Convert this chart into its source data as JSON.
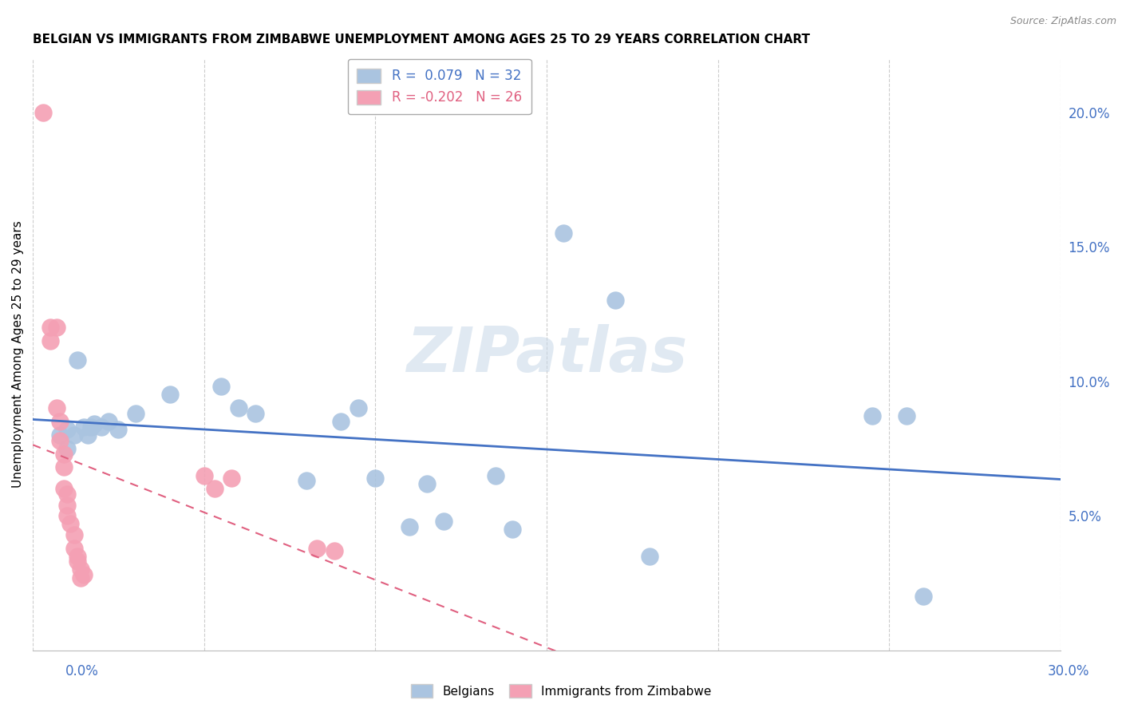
{
  "title": "BELGIAN VS IMMIGRANTS FROM ZIMBABWE UNEMPLOYMENT AMONG AGES 25 TO 29 YEARS CORRELATION CHART",
  "source": "Source: ZipAtlas.com",
  "ylabel": "Unemployment Among Ages 25 to 29 years",
  "ylabel_right_ticks": [
    "20.0%",
    "15.0%",
    "10.0%",
    "5.0%"
  ],
  "ylabel_right_vals": [
    0.2,
    0.15,
    0.1,
    0.05
  ],
  "xlim": [
    0.0,
    0.3
  ],
  "ylim": [
    0.0,
    0.22
  ],
  "belgians_R": 0.079,
  "belgians_N": 32,
  "zimbabwe_R": -0.202,
  "zimbabwe_N": 26,
  "belgians_color": "#aac4e0",
  "zimbabwe_color": "#f4a0b4",
  "trend_belgian_color": "#4472c4",
  "trend_zimbabwe_color": "#e06080",
  "watermark": "ZIPatlas",
  "belgians_x": [
    0.008,
    0.01,
    0.01,
    0.012,
    0.013,
    0.015,
    0.016,
    0.017,
    0.018,
    0.02,
    0.022,
    0.025,
    0.03,
    0.04,
    0.055,
    0.06,
    0.065,
    0.08,
    0.09,
    0.095,
    0.1,
    0.11,
    0.115,
    0.12,
    0.135,
    0.14,
    0.155,
    0.17,
    0.18,
    0.245,
    0.255,
    0.26
  ],
  "belgians_y": [
    0.08,
    0.075,
    0.082,
    0.08,
    0.108,
    0.083,
    0.08,
    0.083,
    0.084,
    0.083,
    0.085,
    0.082,
    0.088,
    0.095,
    0.098,
    0.09,
    0.088,
    0.063,
    0.085,
    0.09,
    0.064,
    0.046,
    0.062,
    0.048,
    0.065,
    0.045,
    0.155,
    0.13,
    0.035,
    0.087,
    0.087,
    0.02
  ],
  "zimbabwe_x": [
    0.003,
    0.005,
    0.005,
    0.007,
    0.007,
    0.008,
    0.008,
    0.009,
    0.009,
    0.009,
    0.01,
    0.01,
    0.01,
    0.011,
    0.012,
    0.012,
    0.013,
    0.013,
    0.014,
    0.014,
    0.015,
    0.05,
    0.053,
    0.058,
    0.083,
    0.088
  ],
  "zimbabwe_y": [
    0.2,
    0.12,
    0.115,
    0.12,
    0.09,
    0.085,
    0.078,
    0.073,
    0.068,
    0.06,
    0.058,
    0.054,
    0.05,
    0.047,
    0.043,
    0.038,
    0.035,
    0.033,
    0.03,
    0.027,
    0.028,
    0.065,
    0.06,
    0.064,
    0.038,
    0.037
  ]
}
